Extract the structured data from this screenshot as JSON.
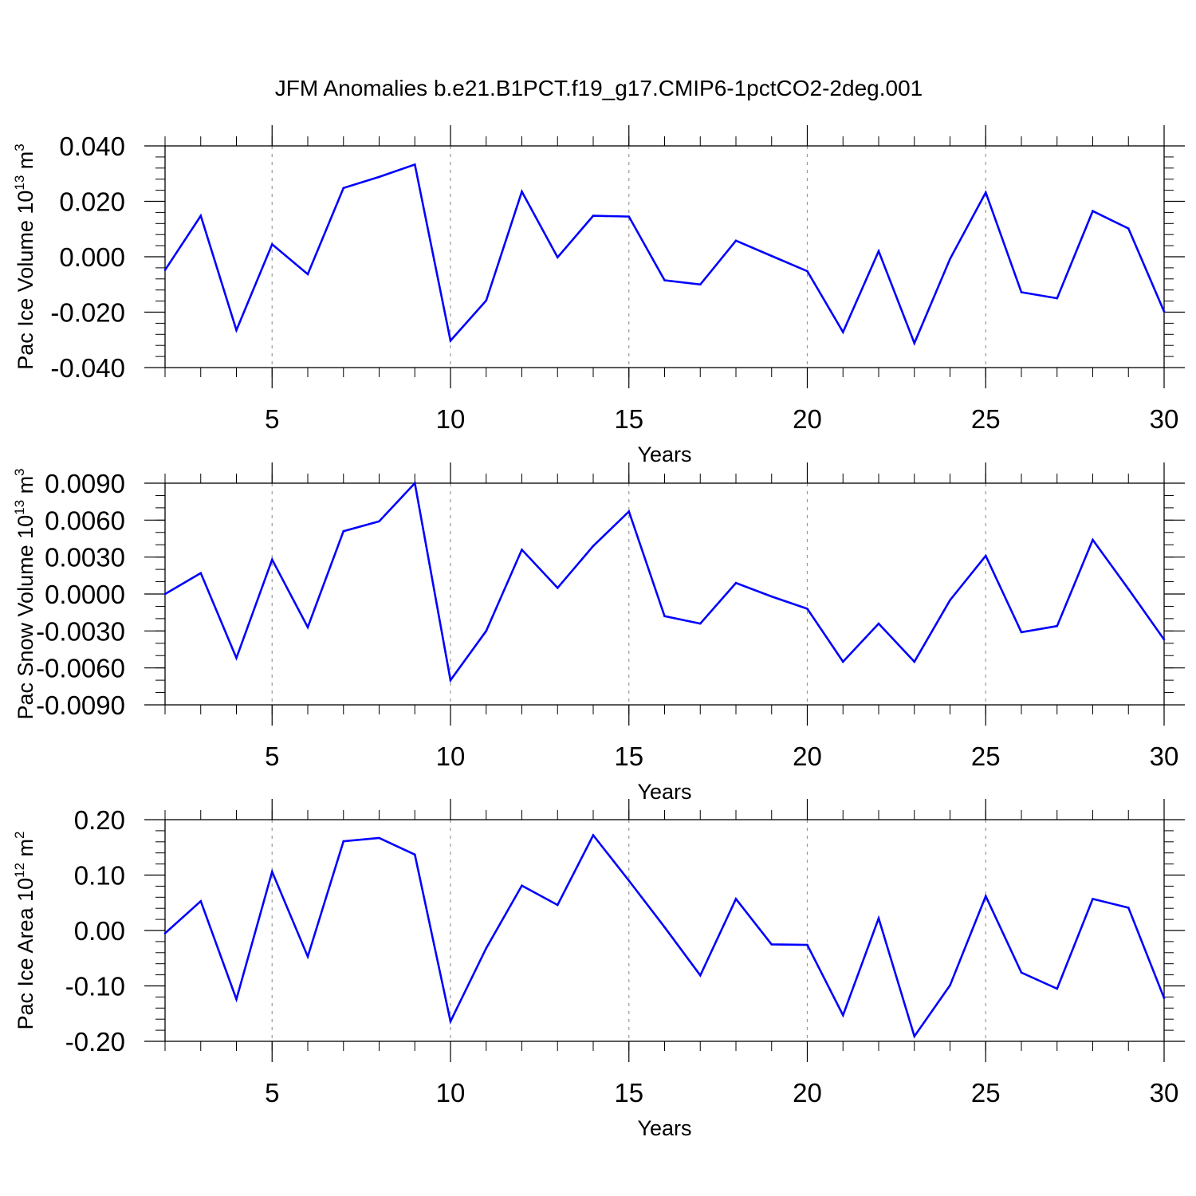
{
  "title": "JFM Anomalies b.e21.B1PCT.f19_g17.CMIP6-1pctCO2-2deg.001",
  "colors": {
    "line": "#0000ff",
    "axis": "#000000",
    "grid": "#999999"
  },
  "chart_data": [
    {
      "type": "line",
      "ylabel": "Pac Ice Volume 10",
      "ylabel_exp": "13",
      "ylabel_unit": " m",
      "ylabel_unit_exp": "3",
      "xlabel": "Years",
      "xlim": [
        2,
        30
      ],
      "ylim": [
        -0.04,
        0.04
      ],
      "xticks": [
        5,
        10,
        15,
        20,
        25,
        30
      ],
      "xtick_labels": [
        "5",
        "10",
        "15",
        "20",
        "25",
        "30"
      ],
      "yticks": [
        -0.04,
        -0.02,
        0.0,
        0.02,
        0.04
      ],
      "ytick_labels": [
        "-0.040",
        "-0.020",
        "0.000",
        "0.020",
        "0.040"
      ],
      "x_minor_step": 1,
      "y_minor_step": 0.004,
      "grid": "x-major-dashed",
      "x": [
        2,
        3,
        4,
        5,
        6,
        7,
        8,
        9,
        10,
        11,
        12,
        13,
        14,
        15,
        16,
        17,
        18,
        19,
        20,
        21,
        22,
        23,
        24,
        25,
        26,
        27,
        28,
        29,
        30
      ],
      "values": [
        -0.0048,
        0.0148,
        -0.0265,
        0.0045,
        -0.0063,
        0.0248,
        0.0288,
        0.0333,
        -0.0303,
        -0.0158,
        0.0235,
        -0.0002,
        0.0148,
        0.0145,
        -0.0085,
        -0.01,
        0.0058,
        0.0003,
        -0.0052,
        -0.0272,
        0.002,
        -0.0312,
        -0.0008,
        0.0232,
        -0.0128,
        -0.015,
        0.0165,
        0.0102,
        -0.0198
      ]
    },
    {
      "type": "line",
      "ylabel": "Pac Snow Volume 10",
      "ylabel_exp": "13",
      "ylabel_unit": " m",
      "ylabel_unit_exp": "3",
      "xlabel": "Years",
      "xlim": [
        2,
        30
      ],
      "ylim": [
        -0.009,
        0.009
      ],
      "xticks": [
        5,
        10,
        15,
        20,
        25,
        30
      ],
      "xtick_labels": [
        "5",
        "10",
        "15",
        "20",
        "25",
        "30"
      ],
      "yticks": [
        -0.009,
        -0.006,
        -0.003,
        0.0,
        0.003,
        0.006,
        0.009
      ],
      "ytick_labels": [
        "-0.0090",
        "-0.0060",
        "-0.0030",
        "0.0000",
        "0.0030",
        "0.0060",
        "0.0090"
      ],
      "x_minor_step": 1,
      "y_minor_step": 0.001,
      "grid": "x-major-dashed",
      "x": [
        2,
        3,
        4,
        5,
        6,
        7,
        8,
        9,
        10,
        11,
        12,
        13,
        14,
        15,
        16,
        17,
        18,
        19,
        20,
        21,
        22,
        23,
        24,
        25,
        26,
        27,
        28,
        29,
        30
      ],
      "values": [
        0.0,
        0.0017,
        -0.0052,
        0.0028,
        -0.0027,
        0.0051,
        0.0059,
        0.009,
        -0.007,
        -0.003,
        0.0036,
        0.0005,
        0.0039,
        0.0067,
        -0.0018,
        -0.0024,
        0.0009,
        -0.0002,
        -0.0012,
        -0.0055,
        -0.0024,
        -0.0055,
        -0.0005,
        0.0031,
        -0.0031,
        -0.0026,
        0.0044,
        0.0004,
        -0.0037
      ]
    },
    {
      "type": "line",
      "ylabel": "Pac Ice Area 10",
      "ylabel_exp": "12",
      "ylabel_unit": " m",
      "ylabel_unit_exp": "2",
      "xlabel": "Years",
      "xlim": [
        2,
        30
      ],
      "ylim": [
        -0.2,
        0.2
      ],
      "xticks": [
        5,
        10,
        15,
        20,
        25,
        30
      ],
      "xtick_labels": [
        "5",
        "10",
        "15",
        "20",
        "25",
        "30"
      ],
      "yticks": [
        -0.2,
        -0.1,
        0.0,
        0.1,
        0.2
      ],
      "ytick_labels": [
        "-0.20",
        "-0.10",
        "0.00",
        "0.10",
        "0.20"
      ],
      "x_minor_step": 1,
      "y_minor_step": 0.02,
      "grid": "x-major-dashed",
      "x": [
        2,
        3,
        4,
        5,
        6,
        7,
        8,
        9,
        10,
        11,
        12,
        13,
        14,
        15,
        16,
        17,
        18,
        19,
        20,
        21,
        22,
        23,
        24,
        25,
        26,
        27,
        28,
        29,
        30
      ],
      "values": [
        -0.005,
        0.053,
        -0.124,
        0.106,
        -0.047,
        0.161,
        0.167,
        0.137,
        -0.164,
        -0.032,
        0.081,
        0.046,
        0.172,
        0.09,
        0.006,
        -0.081,
        0.057,
        -0.025,
        -0.026,
        -0.153,
        0.022,
        -0.191,
        -0.099,
        0.062,
        -0.076,
        -0.105,
        0.057,
        0.041,
        -0.122
      ]
    }
  ]
}
